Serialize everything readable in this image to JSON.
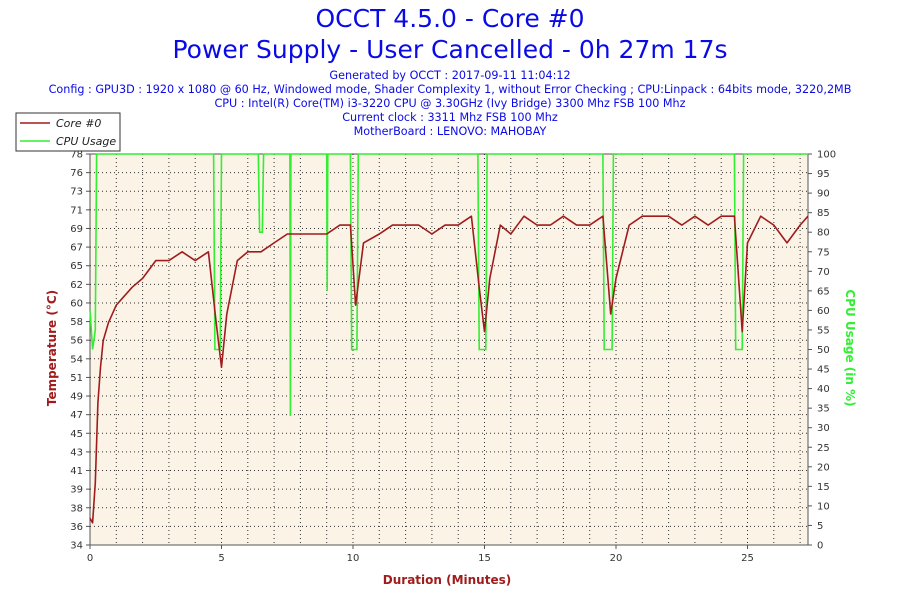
{
  "title_line1": "OCCT 4.5.0 - Core #0",
  "title_line2": "Power Supply - User Cancelled - 0h 27m 17s",
  "info_lines": [
    "Generated by OCCT : 2017-09-11 11:04:12",
    "Config : GPU3D : 1920 x 1080 @ 60 Hz, Windowed mode, Shader Complexity 1, without Error Checking ; CPU:Linpack : 64bits mode, 3220,2MB",
    "CPU : Intel(R) Core(TM) i3-3220 CPU @ 3.30GHz (Ivy Bridge) 3300 Mhz FSB 100 Mhz",
    "Current clock : 3311 Mhz FSB 100 Mhz",
    "MotherBoard : LENOVO: MAHOBAY"
  ],
  "colors": {
    "title": "#0a0ae6",
    "temperature": "#a01c1c",
    "cpu_usage": "#33ee33",
    "plot_bg": "#fbf3e6"
  },
  "chart_data": {
    "type": "line",
    "legend": {
      "position": "top-left",
      "entries": [
        "Core #0",
        "CPU Usage"
      ]
    },
    "xlabel": "Duration (Minutes)",
    "ylabel_left": "Temperature (°C)",
    "ylabel_right": "CPU Usage (in %)",
    "xlim": [
      0,
      27.3
    ],
    "ylim_left": [
      34,
      78
    ],
    "ylim_right": [
      0,
      100
    ],
    "x_ticks": [
      "0",
      "5",
      "10",
      "15",
      "20",
      "25"
    ],
    "y_ticks_left": [
      "34",
      "36",
      "38",
      "39",
      "41",
      "43",
      "45",
      "47",
      "49",
      "51",
      "54",
      "56",
      "58",
      "60",
      "62",
      "65",
      "67",
      "69",
      "71",
      "73",
      "76",
      "78"
    ],
    "y_ticks_right": [
      "0",
      "5",
      "10",
      "15",
      "20",
      "25",
      "30",
      "35",
      "40",
      "45",
      "50",
      "55",
      "60",
      "65",
      "70",
      "75",
      "80",
      "85",
      "90",
      "95",
      "100"
    ],
    "grid": true,
    "series": [
      {
        "name": "Core #0",
        "axis": "left",
        "x": [
          0,
          0.1,
          0.2,
          0.3,
          0.4,
          0.5,
          0.7,
          1.0,
          1.3,
          1.6,
          2.0,
          2.5,
          3.0,
          3.5,
          4.0,
          4.5,
          4.8,
          5.0,
          5.2,
          5.6,
          6.0,
          6.5,
          7.0,
          7.5,
          8.0,
          8.5,
          9.0,
          9.5,
          9.9,
          10.1,
          10.4,
          11.0,
          11.5,
          12.0,
          12.5,
          13.0,
          13.5,
          14.0,
          14.5,
          14.8,
          15.0,
          15.2,
          15.6,
          16.0,
          16.5,
          17.0,
          17.5,
          18.0,
          18.5,
          19.0,
          19.5,
          19.8,
          20.0,
          20.5,
          21.0,
          21.5,
          22.0,
          22.5,
          23.0,
          23.5,
          24.0,
          24.5,
          24.8,
          25.0,
          25.5,
          26.0,
          26.5,
          27.0,
          27.3
        ],
        "y": [
          37,
          36.5,
          41,
          50,
          54,
          57,
          59,
          61,
          62,
          63,
          64,
          66,
          66,
          67,
          66,
          67,
          59,
          54,
          60,
          66,
          67,
          67,
          68,
          69,
          69,
          69,
          69,
          70,
          70,
          61,
          68,
          69,
          70,
          70,
          70,
          69,
          70,
          70,
          71,
          63,
          58,
          64,
          70,
          69,
          71,
          70,
          70,
          71,
          70,
          70,
          71,
          60,
          64,
          70,
          71,
          71,
          71,
          70,
          71,
          70,
          71,
          71,
          58,
          68,
          71,
          70,
          68,
          70,
          71
        ]
      },
      {
        "name": "CPU Usage",
        "axis": "right",
        "x": [
          0,
          0.1,
          0.2,
          0.25,
          4.7,
          4.75,
          4.95,
          5.0,
          6.4,
          6.45,
          6.55,
          6.6,
          7.6,
          7.62,
          7.64,
          9.0,
          9.02,
          9.04,
          9.9,
          9.95,
          10.15,
          10.2,
          14.75,
          14.8,
          15.05,
          15.1,
          19.5,
          19.55,
          19.85,
          19.9,
          24.5,
          24.55,
          24.8,
          24.85,
          27.3
        ],
        "y": [
          60,
          50,
          55,
          100,
          100,
          50,
          50,
          100,
          100,
          80,
          80,
          100,
          100,
          33,
          100,
          100,
          65,
          100,
          100,
          50,
          50,
          100,
          100,
          50,
          50,
          100,
          100,
          50,
          50,
          100,
          100,
          50,
          50,
          100,
          100
        ]
      }
    ]
  }
}
